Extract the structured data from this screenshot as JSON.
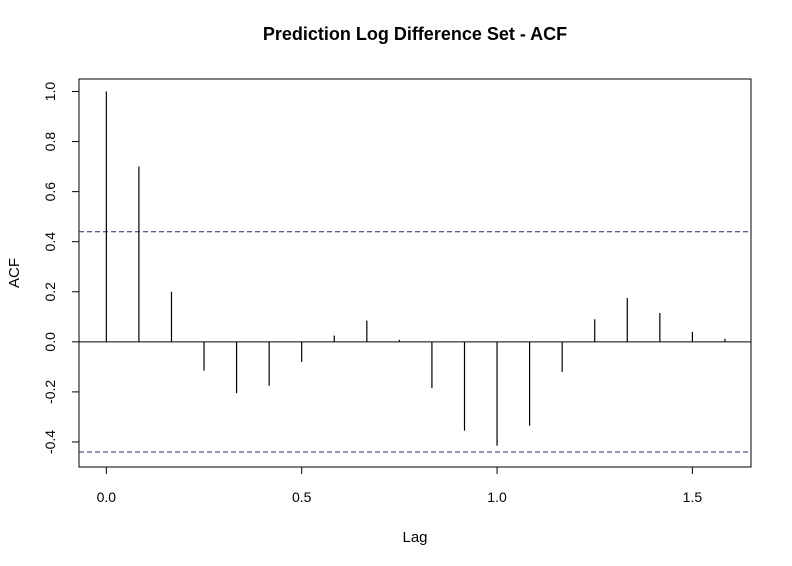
{
  "chart_data": {
    "type": "bar",
    "title": "Prediction Log Difference Set - ACF",
    "xlabel": "Lag",
    "ylabel": "ACF",
    "xlim": [
      -0.07,
      1.65
    ],
    "ylim": [
      -0.5,
      1.05
    ],
    "x_ticks": [
      0.0,
      0.5,
      1.0,
      1.5
    ],
    "x_tick_labels": [
      "0.0",
      "0.5",
      "1.0",
      "1.5"
    ],
    "y_ticks": [
      -0.4,
      -0.2,
      0.0,
      0.2,
      0.4,
      0.6,
      0.8,
      1.0
    ],
    "y_tick_labels": [
      "-0.4",
      "-0.2",
      "0.0",
      "0.2",
      "0.4",
      "0.6",
      "0.8",
      "1.0"
    ],
    "confidence_bounds": [
      0.44,
      -0.44
    ],
    "zero_line": true,
    "grid": false,
    "series": [
      {
        "lags": [
          0.0,
          0.0833,
          0.1667,
          0.25,
          0.3333,
          0.4167,
          0.5,
          0.5833,
          0.6667,
          0.75,
          0.8333,
          0.9167,
          1.0,
          1.0833,
          1.1667,
          1.25,
          1.3333,
          1.4167,
          1.5,
          1.5833
        ],
        "values": [
          1.0,
          0.7,
          0.2,
          -0.115,
          -0.205,
          -0.175,
          -0.08,
          0.025,
          0.085,
          0.008,
          -0.185,
          -0.355,
          -0.415,
          -0.335,
          -0.12,
          0.09,
          0.175,
          0.115,
          0.04,
          0.012
        ]
      }
    ]
  }
}
